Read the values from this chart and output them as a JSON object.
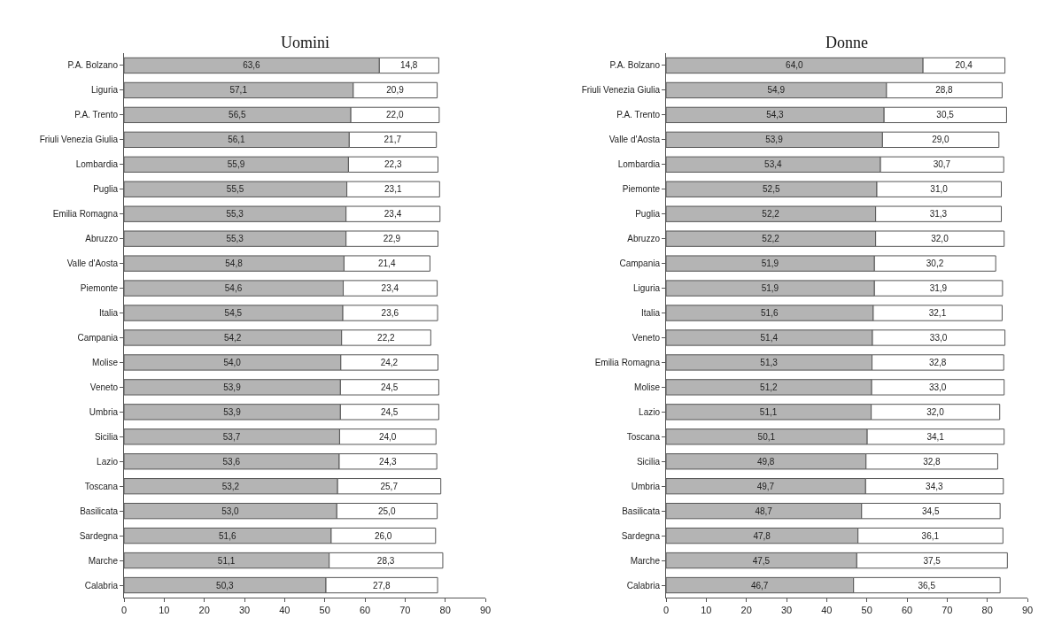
{
  "chart_data": [
    {
      "type": "bar",
      "orientation": "horizontal",
      "stacked": true,
      "title": "Uomini",
      "xlim": [
        0,
        90
      ],
      "xticks": [
        0,
        10,
        20,
        30,
        40,
        50,
        60,
        70,
        80,
        90
      ],
      "categories": [
        "P.A. Bolzano",
        "Liguria",
        "P.A. Trento",
        "Friuli Venezia Giulia",
        "Lombardia",
        "Puglia",
        "Emilia Romagna",
        "Abruzzo",
        "Valle d'Aosta",
        "Piemonte",
        "Italia",
        "Campania",
        "Molise",
        "Veneto",
        "Umbria",
        "Sicilia",
        "Lazio",
        "Toscana",
        "Basilicata",
        "Sardegna",
        "Marche",
        "Calabria"
      ],
      "series": [
        {
          "color": "#b4b4b4",
          "values": [
            63.6,
            57.1,
            56.5,
            56.1,
            55.9,
            55.5,
            55.3,
            55.3,
            54.8,
            54.6,
            54.5,
            54.2,
            54.0,
            53.9,
            53.9,
            53.7,
            53.6,
            53.2,
            53.0,
            51.6,
            51.1,
            50.3
          ],
          "value_labels": [
            "63,6",
            "57,1",
            "56,5",
            "56,1",
            "55,9",
            "55,5",
            "55,3",
            "55,3",
            "54,8",
            "54,6",
            "54,5",
            "54,2",
            "54,0",
            "53,9",
            "53,9",
            "53,7",
            "53,6",
            "53,2",
            "53,0",
            "51,6",
            "51,1",
            "50,3"
          ]
        },
        {
          "color": "#ffffff",
          "values": [
            14.8,
            20.9,
            22.0,
            21.7,
            22.3,
            23.1,
            23.4,
            22.9,
            21.4,
            23.4,
            23.6,
            22.2,
            24.2,
            24.5,
            24.5,
            24.0,
            24.3,
            25.7,
            25.0,
            26.0,
            28.3,
            27.8
          ],
          "value_labels": [
            "14,8",
            "20,9",
            "22,0",
            "21,7",
            "22,3",
            "23,1",
            "23,4",
            "22,9",
            "21,4",
            "23,4",
            "23,6",
            "22,2",
            "24,2",
            "24,5",
            "24,5",
            "24,0",
            "24,3",
            "25,7",
            "25,0",
            "26,0",
            "28,3",
            "27,8"
          ]
        }
      ]
    },
    {
      "type": "bar",
      "orientation": "horizontal",
      "stacked": true,
      "title": "Donne",
      "xlim": [
        0,
        90
      ],
      "xticks": [
        0,
        10,
        20,
        30,
        40,
        50,
        60,
        70,
        80,
        90
      ],
      "categories": [
        "P.A. Bolzano",
        "Friuli Venezia Giulia",
        "P.A. Trento",
        "Valle d'Aosta",
        "Lombardia",
        "Piemonte",
        "Puglia",
        "Abruzzo",
        "Campania",
        "Liguria",
        "Italia",
        "Veneto",
        "Emilia Romagna",
        "Molise",
        "Lazio",
        "Toscana",
        "Sicilia",
        "Umbria",
        "Basilicata",
        "Sardegna",
        "Marche",
        "Calabria"
      ],
      "series": [
        {
          "color": "#b4b4b4",
          "values": [
            64.0,
            54.9,
            54.3,
            53.9,
            53.4,
            52.5,
            52.2,
            52.2,
            51.9,
            51.9,
            51.6,
            51.4,
            51.3,
            51.2,
            51.1,
            50.1,
            49.8,
            49.7,
            48.7,
            47.8,
            47.5,
            46.7
          ],
          "value_labels": [
            "64,0",
            "54,9",
            "54,3",
            "53,9",
            "53,4",
            "52,5",
            "52,2",
            "52,2",
            "51,9",
            "51,9",
            "51,6",
            "51,4",
            "51,3",
            "51,2",
            "51,1",
            "50,1",
            "49,8",
            "49,7",
            "48,7",
            "47,8",
            "47,5",
            "46,7"
          ]
        },
        {
          "color": "#ffffff",
          "values": [
            20.4,
            28.8,
            30.5,
            29.0,
            30.7,
            31.0,
            31.3,
            32.0,
            30.2,
            31.9,
            32.1,
            33.0,
            32.8,
            33.0,
            32.0,
            34.1,
            32.8,
            34.3,
            34.5,
            36.1,
            37.5,
            36.5
          ],
          "value_labels": [
            "20,4",
            "28,8",
            "30,5",
            "29,0",
            "30,7",
            "31,0",
            "31,3",
            "32,0",
            "30,2",
            "31,9",
            "32,1",
            "33,0",
            "32,8",
            "33,0",
            "32,0",
            "34,1",
            "32,8",
            "34,3",
            "34,5",
            "36,1",
            "37,5",
            "36,5"
          ]
        }
      ]
    }
  ]
}
